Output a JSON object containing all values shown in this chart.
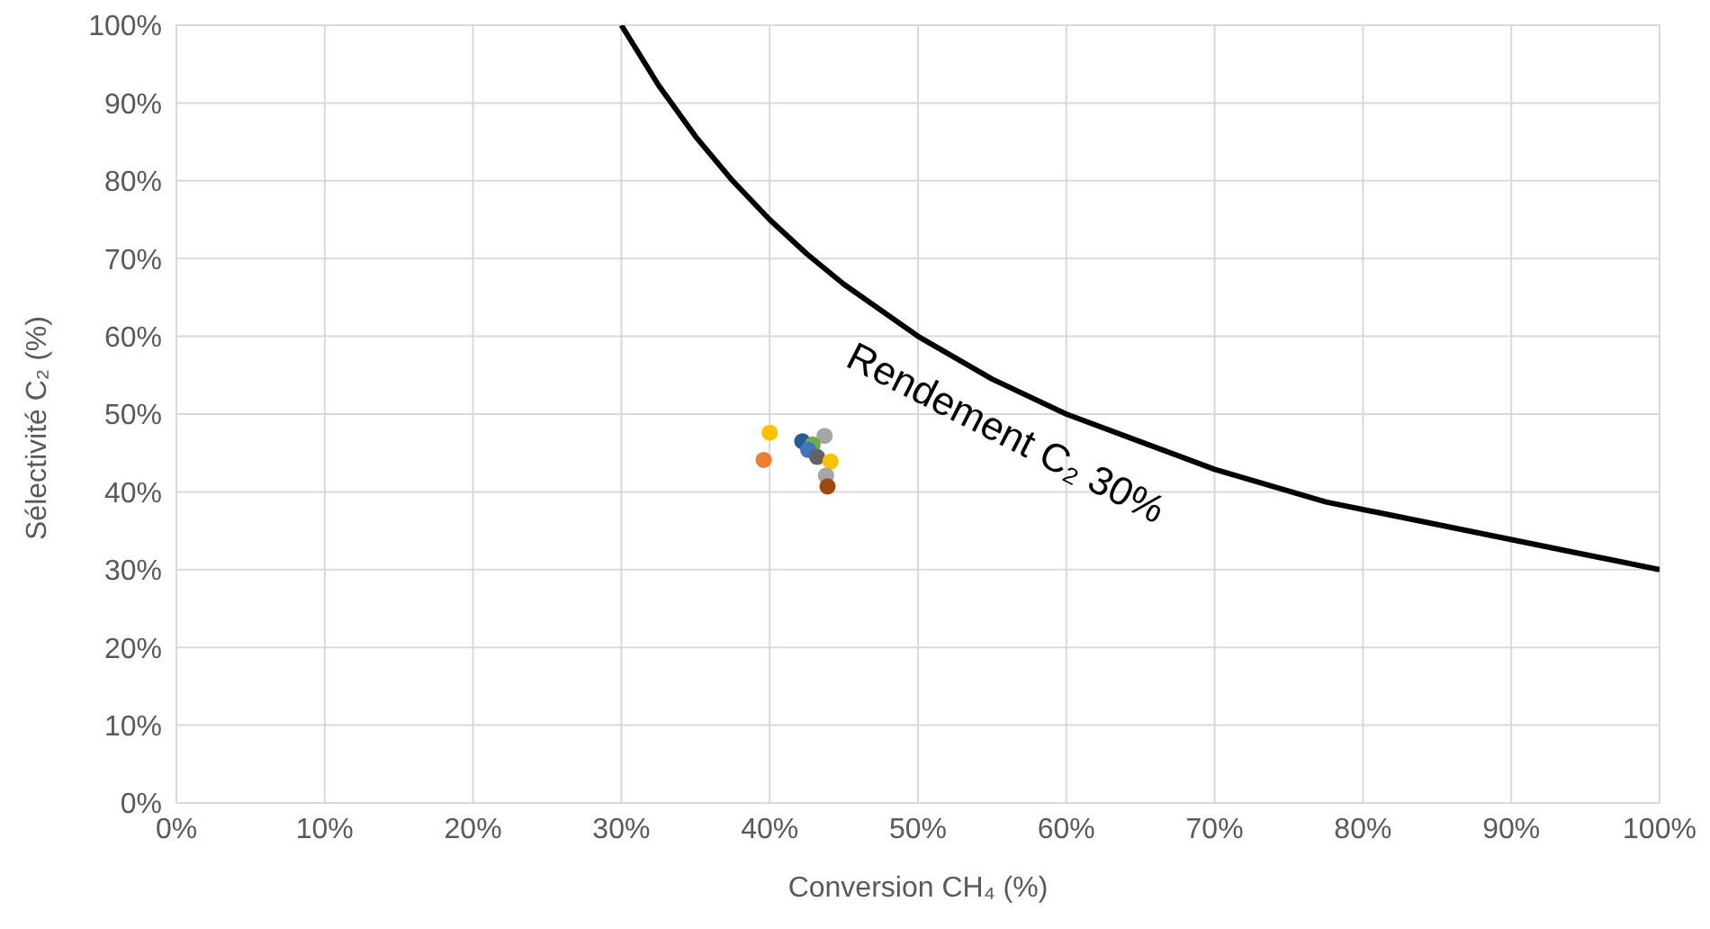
{
  "chart_data": {
    "type": "scatter",
    "xlabel": "Conversion CH₄ (%)",
    "ylabel": "Sélectivité C₂ (%)",
    "xlim": [
      0,
      100
    ],
    "ylim": [
      0,
      100
    ],
    "xticks": [
      {
        "value": 0,
        "label": "0%"
      },
      {
        "value": 10,
        "label": "10%"
      },
      {
        "value": 20,
        "label": "20%"
      },
      {
        "value": 30,
        "label": "30%"
      },
      {
        "value": 40,
        "label": "40%"
      },
      {
        "value": 50,
        "label": "50%"
      },
      {
        "value": 60,
        "label": "60%"
      },
      {
        "value": 70,
        "label": "70%"
      },
      {
        "value": 80,
        "label": "80%"
      },
      {
        "value": 90,
        "label": "90%"
      },
      {
        "value": 100,
        "label": "100%"
      }
    ],
    "yticks": [
      {
        "value": 0,
        "label": "0%"
      },
      {
        "value": 10,
        "label": "10%"
      },
      {
        "value": 20,
        "label": "20%"
      },
      {
        "value": 30,
        "label": "30%"
      },
      {
        "value": 40,
        "label": "40%"
      },
      {
        "value": 50,
        "label": "50%"
      },
      {
        "value": 60,
        "label": "60%"
      },
      {
        "value": 70,
        "label": "70%"
      },
      {
        "value": 80,
        "label": "80%"
      },
      {
        "value": 90,
        "label": "90%"
      },
      {
        "value": 100,
        "label": "100%"
      }
    ],
    "grid": true,
    "legend": false,
    "series": [
      {
        "marker": "circle",
        "x": [
          40.0,
          39.6,
          43.7,
          42.2,
          42.9,
          42.6,
          43.2,
          44.1,
          43.8,
          43.9
        ],
        "values": [
          47.6,
          44.1,
          47.2,
          46.5,
          46.1,
          45.4,
          44.5,
          43.9,
          42.1,
          40.7
        ],
        "colors": [
          "#ffc000",
          "#ed7d31",
          "#a5a5a5",
          "#255e91",
          "#70ad47",
          "#4472c4",
          "#636363",
          "#ffc000",
          "#a5a5a5",
          "#9e480e"
        ]
      },
      {
        "type": "line",
        "marker": "none",
        "line_style": "solid",
        "color": "#000000",
        "x": [
          30,
          32.5,
          35,
          37.5,
          40,
          42.5,
          45,
          50,
          55,
          60,
          70,
          77.5,
          100
        ],
        "values": [
          100,
          92.3,
          85.7,
          80,
          75,
          70.6,
          66.7,
          60,
          54.5,
          50,
          42.9,
          38.7,
          30
        ]
      }
    ],
    "annotations": [
      "Rendement C₂ 30%"
    ]
  }
}
